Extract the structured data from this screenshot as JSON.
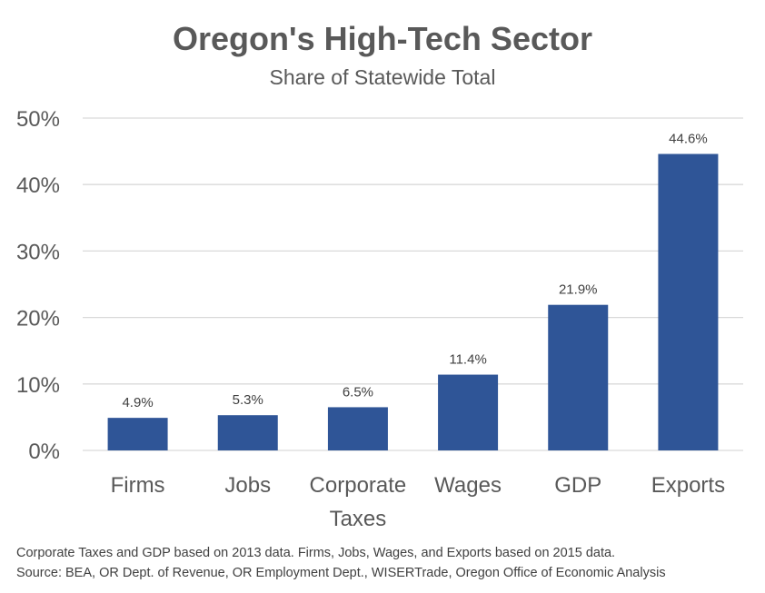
{
  "chart_data": {
    "type": "bar",
    "title": "Oregon's High-Tech Sector",
    "subtitle": "Share of Statewide Total",
    "categories": [
      [
        "Firms"
      ],
      [
        "Jobs"
      ],
      [
        "Corporate",
        "Taxes"
      ],
      [
        "Wages"
      ],
      [
        "GDP"
      ],
      [
        "Exports"
      ]
    ],
    "values": [
      4.9,
      5.3,
      6.5,
      11.4,
      21.9,
      44.6
    ],
    "data_labels": [
      "4.9%",
      "5.3%",
      "6.5%",
      "11.4%",
      "21.9%",
      "44.6%"
    ],
    "y_ticks": [
      "0%",
      "10%",
      "20%",
      "30%",
      "40%",
      "50%"
    ],
    "ylim": [
      0,
      50
    ],
    "grid": true,
    "bar_color": "#2F5597",
    "grid_color": "#D9D9D9"
  },
  "footnote": {
    "line1": "Corporate Taxes and GDP based on 2013 data. Firms, Jobs, Wages, and Exports based on 2015 data.",
    "line2": "Source: BEA, OR Dept. of Revenue, OR Employment Dept., WISERTrade, Oregon Office of Economic Analysis"
  }
}
